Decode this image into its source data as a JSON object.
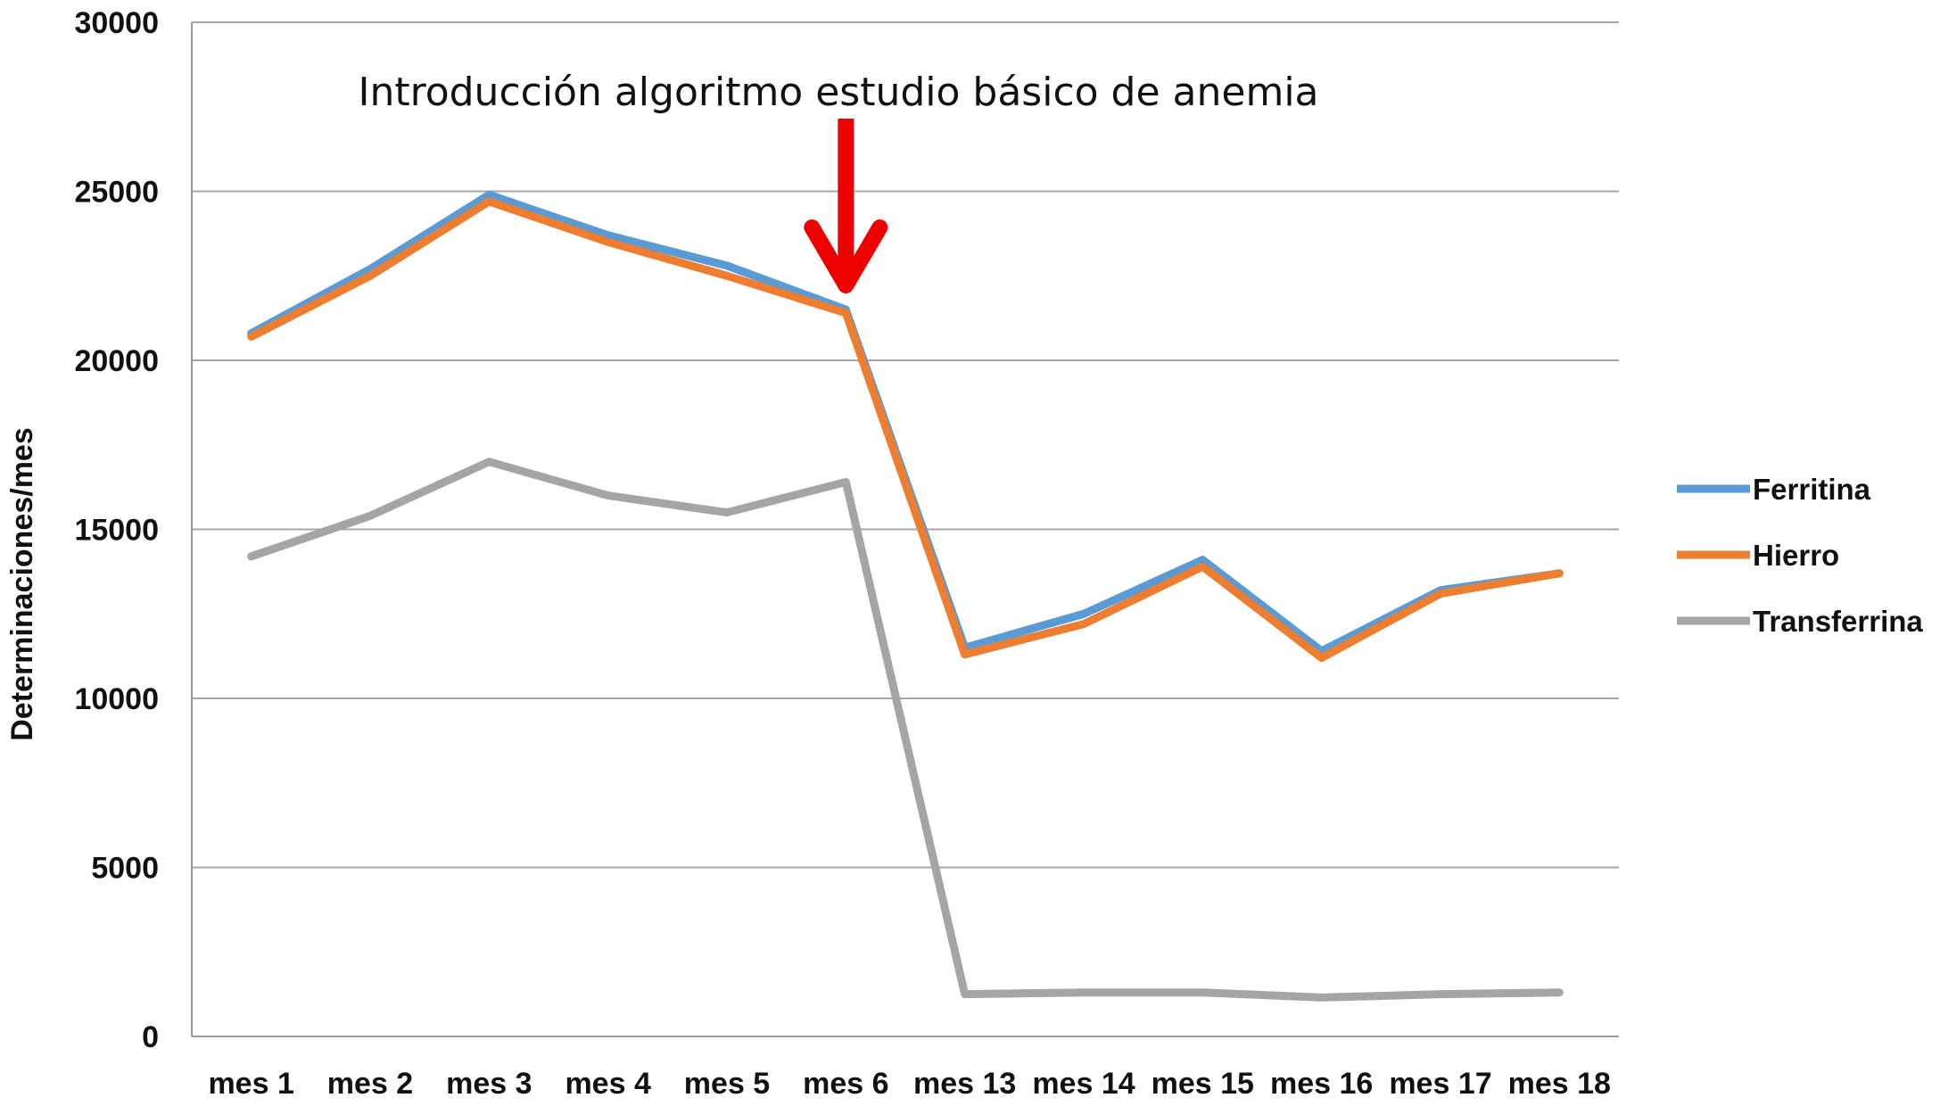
{
  "chart_data": {
    "type": "line",
    "title": "",
    "xlabel": "",
    "ylabel": "Determinaciones/mes",
    "ylim": [
      0,
      30000
    ],
    "yticks": [
      "0",
      "5000",
      "10000",
      "15000",
      "20000",
      "25000",
      "30000"
    ],
    "ytick_values": [
      0,
      5000,
      10000,
      15000,
      20000,
      25000,
      30000
    ],
    "grid": true,
    "legend_position": "right",
    "categories": [
      "mes 1",
      "mes 2",
      "mes 3",
      "mes 4",
      "mes 5",
      "mes 6",
      "mes 13",
      "mes 14",
      "mes 15",
      "mes 16",
      "mes 17",
      "mes 18"
    ],
    "series": [
      {
        "name": "Ferritina",
        "color": "#5b9bd5",
        "values": [
          20800,
          22700,
          24900,
          23700,
          22800,
          21500,
          11500,
          12500,
          14100,
          11400,
          13200,
          13700
        ]
      },
      {
        "name": "Hierro",
        "color": "#ed7d31",
        "values": [
          20700,
          22500,
          24700,
          23500,
          22500,
          21400,
          11300,
          12200,
          13900,
          11200,
          13100,
          13700
        ]
      },
      {
        "name": "Transferrina",
        "color": "#a5a5a5",
        "values": [
          14200,
          15400,
          17000,
          16000,
          15500,
          16400,
          1250,
          1300,
          1300,
          1150,
          1250,
          1300
        ]
      }
    ],
    "annotation": {
      "text": "Introducción algoritmo estudio básico de anemia",
      "arrow_color": "#ee0000",
      "target_category": "mes 6"
    }
  }
}
